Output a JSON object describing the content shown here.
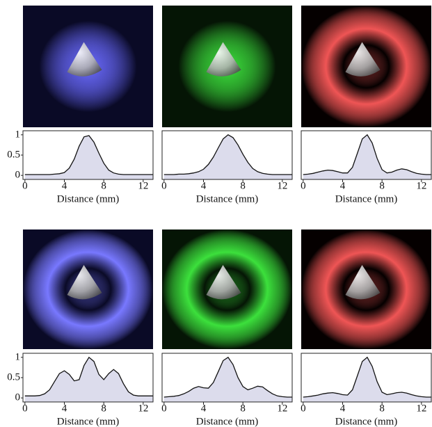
{
  "chart_data": [
    {
      "type": "line",
      "xlabel": "Distance (mm)",
      "color": "#111111",
      "fill": "#dcdcec",
      "x": [
        0,
        0.5,
        1,
        1.5,
        2,
        2.5,
        3,
        3.5,
        4,
        4.5,
        5,
        5.5,
        6,
        6.5,
        7,
        7.5,
        8,
        8.5,
        9,
        9.5,
        10,
        10.5,
        11,
        11.5,
        12,
        12.5,
        13
      ],
      "values": [
        0.02,
        0.02,
        0.02,
        0.02,
        0.02,
        0.02,
        0.03,
        0.04,
        0.07,
        0.18,
        0.4,
        0.72,
        0.95,
        0.98,
        0.82,
        0.55,
        0.3,
        0.13,
        0.06,
        0.03,
        0.02,
        0.02,
        0.02,
        0.02,
        0.02,
        0.02,
        0.02
      ],
      "xlim": [
        -0.2,
        13
      ],
      "ylim": [
        -0.1,
        1.1
      ],
      "xticks": [
        0,
        4,
        8,
        12
      ],
      "yticks": [
        0,
        0.5,
        1
      ]
    },
    {
      "type": "line",
      "xlabel": "Distance (mm)",
      "color": "#111111",
      "fill": "#dcdcec",
      "x": [
        0,
        0.5,
        1,
        1.5,
        2,
        2.5,
        3,
        3.5,
        4,
        4.5,
        5,
        5.5,
        6,
        6.5,
        7,
        7.5,
        8,
        8.5,
        9,
        9.5,
        10,
        10.5,
        11,
        11.5,
        12,
        12.5,
        13
      ],
      "values": [
        0.02,
        0.02,
        0.02,
        0.03,
        0.03,
        0.04,
        0.06,
        0.09,
        0.15,
        0.27,
        0.45,
        0.68,
        0.9,
        1.0,
        0.93,
        0.75,
        0.52,
        0.32,
        0.17,
        0.09,
        0.05,
        0.03,
        0.02,
        0.02,
        0.02,
        0.02,
        0.02
      ],
      "xlim": [
        -0.2,
        13
      ],
      "ylim": [
        -0.1,
        1.1
      ],
      "xticks": [
        0,
        4,
        8,
        12
      ]
    },
    {
      "type": "line",
      "xlabel": "Distance (mm)",
      "color": "#111111",
      "fill": "#dcdcec",
      "x": [
        0,
        0.5,
        1,
        1.5,
        2,
        2.5,
        3,
        3.5,
        4,
        4.5,
        5,
        5.5,
        6,
        6.5,
        7,
        7.5,
        8,
        8.5,
        9,
        9.5,
        10,
        10.5,
        11,
        11.5,
        12,
        12.5,
        13
      ],
      "values": [
        0.02,
        0.03,
        0.05,
        0.08,
        0.11,
        0.13,
        0.12,
        0.09,
        0.06,
        0.06,
        0.2,
        0.55,
        0.9,
        1.0,
        0.8,
        0.42,
        0.14,
        0.06,
        0.08,
        0.13,
        0.16,
        0.14,
        0.09,
        0.05,
        0.03,
        0.02,
        0.02
      ],
      "xlim": [
        -0.2,
        13
      ],
      "ylim": [
        -0.1,
        1.1
      ],
      "xticks": [
        0,
        4,
        8,
        12
      ]
    },
    {
      "type": "line",
      "xlabel": "Distance (mm)",
      "color": "#111111",
      "fill": "#dcdcec",
      "x": [
        0,
        0.5,
        1,
        1.5,
        2,
        2.5,
        3,
        3.5,
        4,
        4.5,
        5,
        5.5,
        6,
        6.5,
        7,
        7.5,
        8,
        8.5,
        9,
        9.5,
        10,
        10.5,
        11,
        11.5,
        12,
        12.5,
        13
      ],
      "values": [
        0.05,
        0.05,
        0.05,
        0.06,
        0.1,
        0.2,
        0.4,
        0.6,
        0.67,
        0.58,
        0.42,
        0.45,
        0.8,
        1.0,
        0.9,
        0.58,
        0.45,
        0.6,
        0.7,
        0.6,
        0.35,
        0.15,
        0.07,
        0.05,
        0.05,
        0.05,
        0.05
      ],
      "xlim": [
        -0.2,
        13
      ],
      "ylim": [
        -0.1,
        1.1
      ],
      "xticks": [
        0,
        4,
        8,
        12
      ],
      "yticks": [
        0,
        0.5,
        1
      ]
    },
    {
      "type": "line",
      "xlabel": "Distance (mm)",
      "color": "#111111",
      "fill": "#dcdcec",
      "x": [
        0,
        0.5,
        1,
        1.5,
        2,
        2.5,
        3,
        3.5,
        4,
        4.5,
        5,
        5.5,
        6,
        6.5,
        7,
        7.5,
        8,
        8.5,
        9,
        9.5,
        10,
        10.5,
        11,
        11.5,
        12,
        12.5,
        13
      ],
      "values": [
        0.02,
        0.03,
        0.04,
        0.06,
        0.1,
        0.16,
        0.24,
        0.28,
        0.25,
        0.24,
        0.38,
        0.65,
        0.92,
        1.0,
        0.82,
        0.5,
        0.28,
        0.2,
        0.24,
        0.29,
        0.27,
        0.18,
        0.1,
        0.05,
        0.03,
        0.02,
        0.02
      ],
      "xlim": [
        -0.2,
        13
      ],
      "ylim": [
        -0.1,
        1.1
      ],
      "xticks": [
        0,
        4,
        8,
        12
      ]
    },
    {
      "type": "line",
      "xlabel": "Distance (mm)",
      "color": "#111111",
      "fill": "#dcdcec",
      "x": [
        0,
        0.5,
        1,
        1.5,
        2,
        2.5,
        3,
        3.5,
        4,
        4.5,
        5,
        5.5,
        6,
        6.5,
        7,
        7.5,
        8,
        8.5,
        9,
        9.5,
        10,
        10.5,
        11,
        11.5,
        12,
        12.5,
        13
      ],
      "values": [
        0.02,
        0.03,
        0.05,
        0.07,
        0.1,
        0.12,
        0.13,
        0.11,
        0.08,
        0.07,
        0.2,
        0.55,
        0.9,
        1.0,
        0.78,
        0.4,
        0.14,
        0.08,
        0.1,
        0.13,
        0.14,
        0.12,
        0.08,
        0.05,
        0.03,
        0.02,
        0.02
      ],
      "xlim": [
        -0.2,
        13
      ],
      "ylim": [
        -0.1,
        1.1
      ],
      "xticks": [
        0,
        4,
        8,
        12
      ]
    }
  ]
}
